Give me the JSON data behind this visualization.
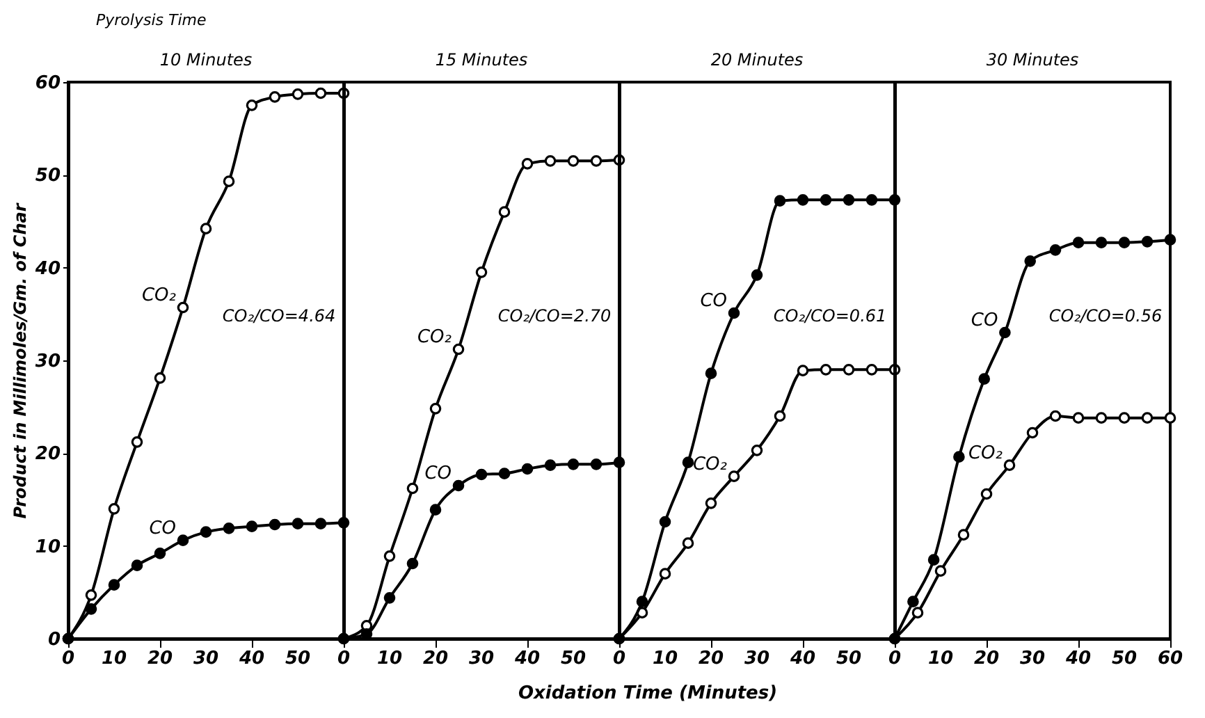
{
  "chart_data": [
    {
      "type": "line",
      "title": "10 Minutes",
      "ylabel": "Product in Millimoles/Gm. of Char",
      "annotations": [
        "Pyrolysis Time",
        "CO₂/CO=4.64"
      ],
      "xlim": [
        0,
        60
      ],
      "ylim": [
        0,
        60
      ],
      "xticks": [
        0,
        10,
        20,
        30,
        40,
        50
      ],
      "yticks": [
        0,
        10,
        20,
        30,
        40,
        50,
        60
      ],
      "marker": "circle",
      "line_style": "solid",
      "grid": false,
      "x": [
        0,
        5,
        10,
        15,
        20,
        25,
        30,
        35,
        40,
        45,
        50,
        55,
        60
      ],
      "series": [
        {
          "name": "CO₂",
          "color": "#000000",
          "values": [
            0,
            4.7,
            14,
            21.2,
            28.1,
            35.7,
            44.2,
            49.3,
            57.5,
            58.4,
            58.7,
            58.8,
            58.8
          ]
        },
        {
          "name": "CO",
          "color": "#000000",
          "values": [
            0,
            3.2,
            5.8,
            7.9,
            9.2,
            10.6,
            11.5,
            11.9,
            12.1,
            12.3,
            12.4,
            12.4,
            12.5
          ]
        }
      ]
    },
    {
      "type": "line",
      "title": "15 Minutes",
      "xlabel": "Oxidation Time (Minutes)",
      "annotations": [
        "CO₂/CO=2.70"
      ],
      "xlim": [
        0,
        60
      ],
      "ylim": [
        0,
        60
      ],
      "xticks": [
        0,
        10,
        20,
        30,
        40,
        50
      ],
      "yticks": [
        0,
        10,
        20,
        30,
        40,
        50,
        60
      ],
      "tick_labels": "x",
      "marker": "circle",
      "line_style": "solid",
      "grid": false,
      "x": [
        0,
        5,
        10,
        15,
        20,
        25,
        30,
        35,
        40,
        45,
        50,
        55,
        60
      ],
      "series": [
        {
          "name": "CO₂",
          "color": "#000000",
          "values": [
            0,
            1.4,
            8.9,
            16.2,
            24.8,
            31.2,
            39.5,
            46,
            51.2,
            51.5,
            51.5,
            51.5,
            51.6
          ]
        },
        {
          "name": "CO",
          "color": "#000000",
          "values": [
            0,
            0.5,
            4.4,
            8.1,
            13.9,
            16.5,
            17.7,
            17.8,
            18.3,
            18.7,
            18.8,
            18.8,
            19
          ]
        }
      ]
    },
    {
      "type": "line",
      "title": "20 Minutes",
      "annotations": [
        "CO₂/CO=0.61"
      ],
      "xlim": [
        0,
        60
      ],
      "ylim": [
        0,
        60
      ],
      "xticks": [
        0,
        10,
        20,
        30,
        40,
        50
      ],
      "yticks": [
        0,
        10,
        20,
        30,
        40,
        50,
        60
      ],
      "tick_labels": "x",
      "marker": "circle",
      "line_style": "solid",
      "grid": false,
      "x": [
        0,
        5,
        10,
        15,
        20,
        25,
        30,
        35,
        40,
        45,
        50,
        55,
        60
      ],
      "series": [
        {
          "name": "CO₂",
          "color": "#000000",
          "values": [
            0,
            2.8,
            7,
            10.3,
            14.6,
            17.5,
            20.3,
            24,
            28.9,
            29,
            29,
            29,
            29
          ]
        },
        {
          "name": "CO",
          "color": "#000000",
          "values": [
            0,
            4,
            12.6,
            19,
            28.6,
            35.1,
            39.2,
            47.2,
            47.3,
            47.3,
            47.3,
            47.3,
            47.3
          ]
        }
      ]
    },
    {
      "type": "line",
      "title": "30 Minutes",
      "annotations": [
        "CO₂/CO=0.56"
      ],
      "xlim": [
        0,
        60
      ],
      "ylim": [
        0,
        60
      ],
      "xticks": [
        0,
        10,
        20,
        30,
        40,
        50,
        60
      ],
      "yticks": [
        0,
        10,
        20,
        30,
        40,
        50,
        60
      ],
      "tick_labels": "x",
      "marker": "circle",
      "line_style": "solid",
      "grid": false,
      "series": [
        {
          "name": "CO₂",
          "color": "#000000",
          "x": [
            0,
            5,
            10,
            15,
            20,
            25,
            30,
            35,
            40,
            45,
            50,
            55,
            60
          ],
          "values": [
            0,
            2.8,
            7.3,
            11.2,
            15.6,
            18.7,
            22.2,
            24,
            23.8,
            23.8,
            23.8,
            23.8,
            23.8
          ]
        },
        {
          "name": "CO",
          "color": "#000000",
          "x": [
            0,
            4,
            8.5,
            14,
            19.5,
            24,
            29.5,
            35,
            40,
            45,
            50,
            55,
            60
          ],
          "values": [
            0,
            4,
            8.5,
            19.6,
            28,
            33,
            40.7,
            41.9,
            42.7,
            42.7,
            42.7,
            42.8,
            43
          ]
        }
      ]
    }
  ]
}
